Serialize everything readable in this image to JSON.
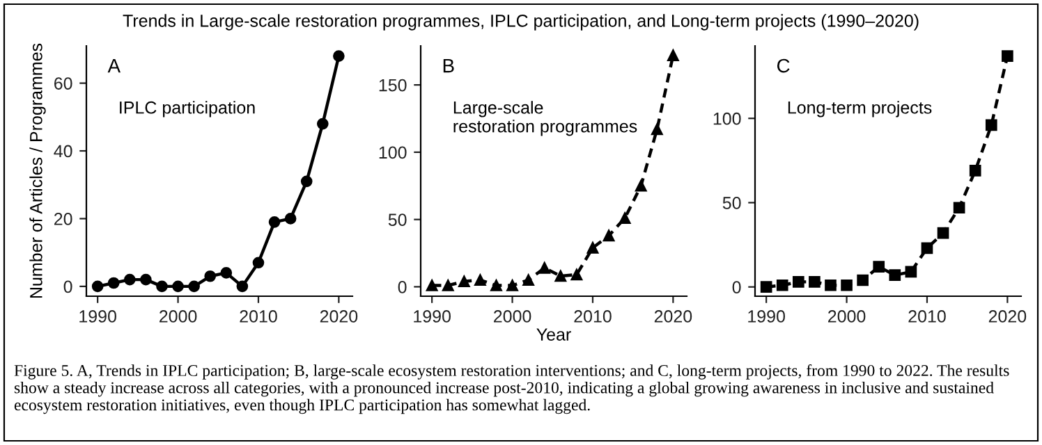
{
  "chart_data": [
    {
      "type": "line",
      "title": "Trends in Large-scale restoration programmes, IPLC participation, and Long-term projects (1990–2020)",
      "ylabel": "Number of Articles / Programmes",
      "annotations": [
        "A",
        "IPLC participation"
      ],
      "x": [
        1990,
        1992,
        1994,
        1996,
        1998,
        2000,
        2002,
        2004,
        2006,
        2008,
        2010,
        2012,
        2014,
        2016,
        2018,
        2020
      ],
      "series": [
        {
          "color": "#000000",
          "values": [
            0,
            1,
            2,
            2,
            0,
            0,
            0,
            3,
            4,
            0,
            7,
            19,
            20,
            31,
            48,
            68
          ]
        }
      ],
      "marker": "circle",
      "line_style": "solid",
      "xlim": [
        1988.6,
        2021.7
      ],
      "xticks": [
        1990,
        2000,
        2010,
        2020
      ],
      "ylim": [
        -2.9,
        71
      ],
      "yticks": [
        0,
        20,
        40,
        60
      ],
      "grid": false
    },
    {
      "type": "line",
      "xlabel": "Year",
      "annotations": [
        "B",
        "Large-scale\nrestoration programmes"
      ],
      "x": [
        1990,
        1992,
        1994,
        1996,
        1998,
        2000,
        2002,
        2004,
        2006,
        2008,
        2010,
        2012,
        2014,
        2016,
        2018,
        2020
      ],
      "series": [
        {
          "color": "#000000",
          "values": [
            1,
            1,
            4,
            5,
            1,
            1,
            5,
            14,
            8,
            9,
            29,
            38,
            51,
            75,
            117,
            172
          ]
        }
      ],
      "marker": "triangle",
      "line_style": "dashed",
      "xlim": [
        1988.6,
        2021.7
      ],
      "xticks": [
        1990,
        2000,
        2010,
        2020
      ],
      "ylim": [
        -7,
        179
      ],
      "yticks": [
        0,
        50,
        100,
        150
      ],
      "grid": false
    },
    {
      "type": "line",
      "annotations": [
        "C",
        "Long-term projects",
        "Figure 5. A, Trends in IPLC participation; B, large-scale ecosystem restoration interventions; and C, long-term projects, from 1990 to 2022. The results show a steady increase across all categories, with a pronounced increase post-2010, indicating a global growing awareness in inclusive and sustained ecosystem restoration initiatives, even though IPLC participation has somewhat lagged."
      ],
      "x": [
        1990,
        1992,
        1994,
        1996,
        1998,
        2000,
        2002,
        2004,
        2006,
        2008,
        2010,
        2012,
        2014,
        2016,
        2018,
        2020
      ],
      "series": [
        {
          "color": "#000000",
          "values": [
            0,
            1,
            3,
            3,
            1,
            1,
            4,
            12,
            7,
            9,
            23,
            32,
            47,
            69,
            96,
            137
          ]
        }
      ],
      "marker": "square",
      "line_style": "dashed",
      "xlim": [
        1988.6,
        2021.7
      ],
      "xticks": [
        1990,
        2000,
        2010,
        2020
      ],
      "ylim": [
        -5.5,
        143
      ],
      "yticks": [
        0,
        50,
        100
      ],
      "grid": false
    }
  ]
}
